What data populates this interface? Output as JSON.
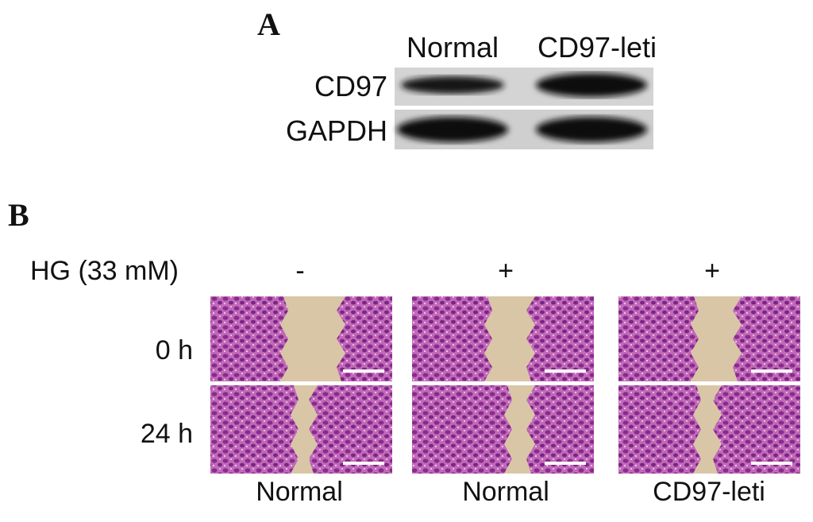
{
  "panel_a": {
    "label": "A",
    "columns": [
      "Normal",
      "CD97-leti"
    ],
    "rows": [
      "CD97",
      "GAPDH"
    ]
  },
  "panel_b": {
    "label": "B",
    "treatment": {
      "label": "HG (33 mM)",
      "values": [
        "-",
        "+",
        "+"
      ]
    },
    "timepoints": [
      "0 h",
      "24 h"
    ],
    "groups": [
      "Normal",
      "Normal",
      "CD97-leti"
    ]
  }
}
